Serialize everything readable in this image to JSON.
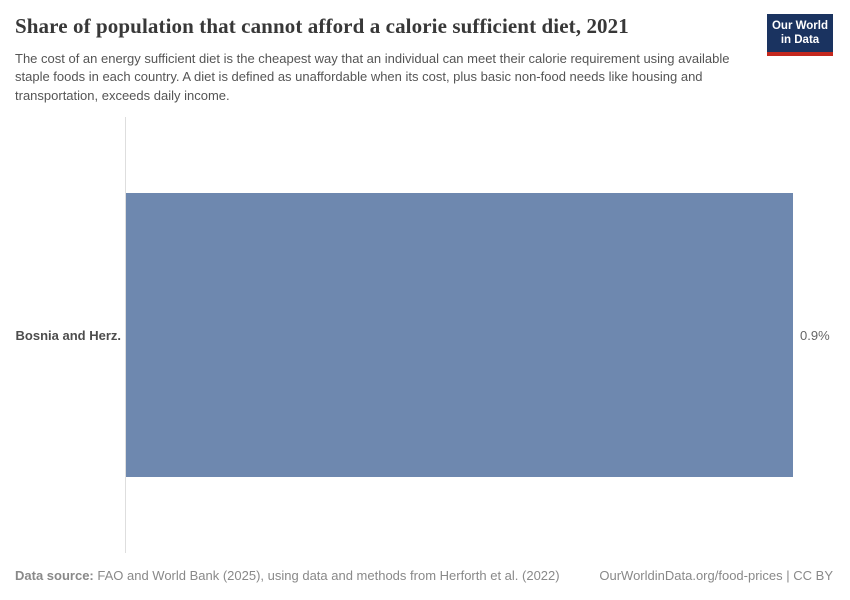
{
  "header": {
    "title": "Share of population that cannot afford a calorie sufficient diet, 2021",
    "subtitle": "The cost of an energy sufficient diet is the cheapest way that an individual can meet their calorie requirement using available staple foods in each country. A diet is defined as unaffordable when its cost, plus basic non-food needs like housing and transportation, exceeds daily income.",
    "logo": {
      "line1": "Our World",
      "line2": "in Data",
      "bg_color": "#1a3360",
      "accent_color": "#c4281e"
    }
  },
  "chart_data": {
    "type": "bar",
    "orientation": "horizontal",
    "title": "Share of population that cannot afford a calorie sufficient diet, 2021",
    "year": "2021",
    "categories": [
      "Bosnia and Herz."
    ],
    "values": [
      0.9
    ],
    "value_labels": [
      "0.9%"
    ],
    "unit": "%",
    "xlim": [
      0,
      0.9
    ],
    "bar_color": "#6e88af",
    "axis_color": "#dedede",
    "grid": false,
    "legend": false
  },
  "footer": {
    "source_label": "Data source:",
    "source_text": " FAO and World Bank (2025), using data and methods from Herforth et al. (2022)",
    "link_text": "OurWorldinData.org/food-prices | CC BY"
  }
}
